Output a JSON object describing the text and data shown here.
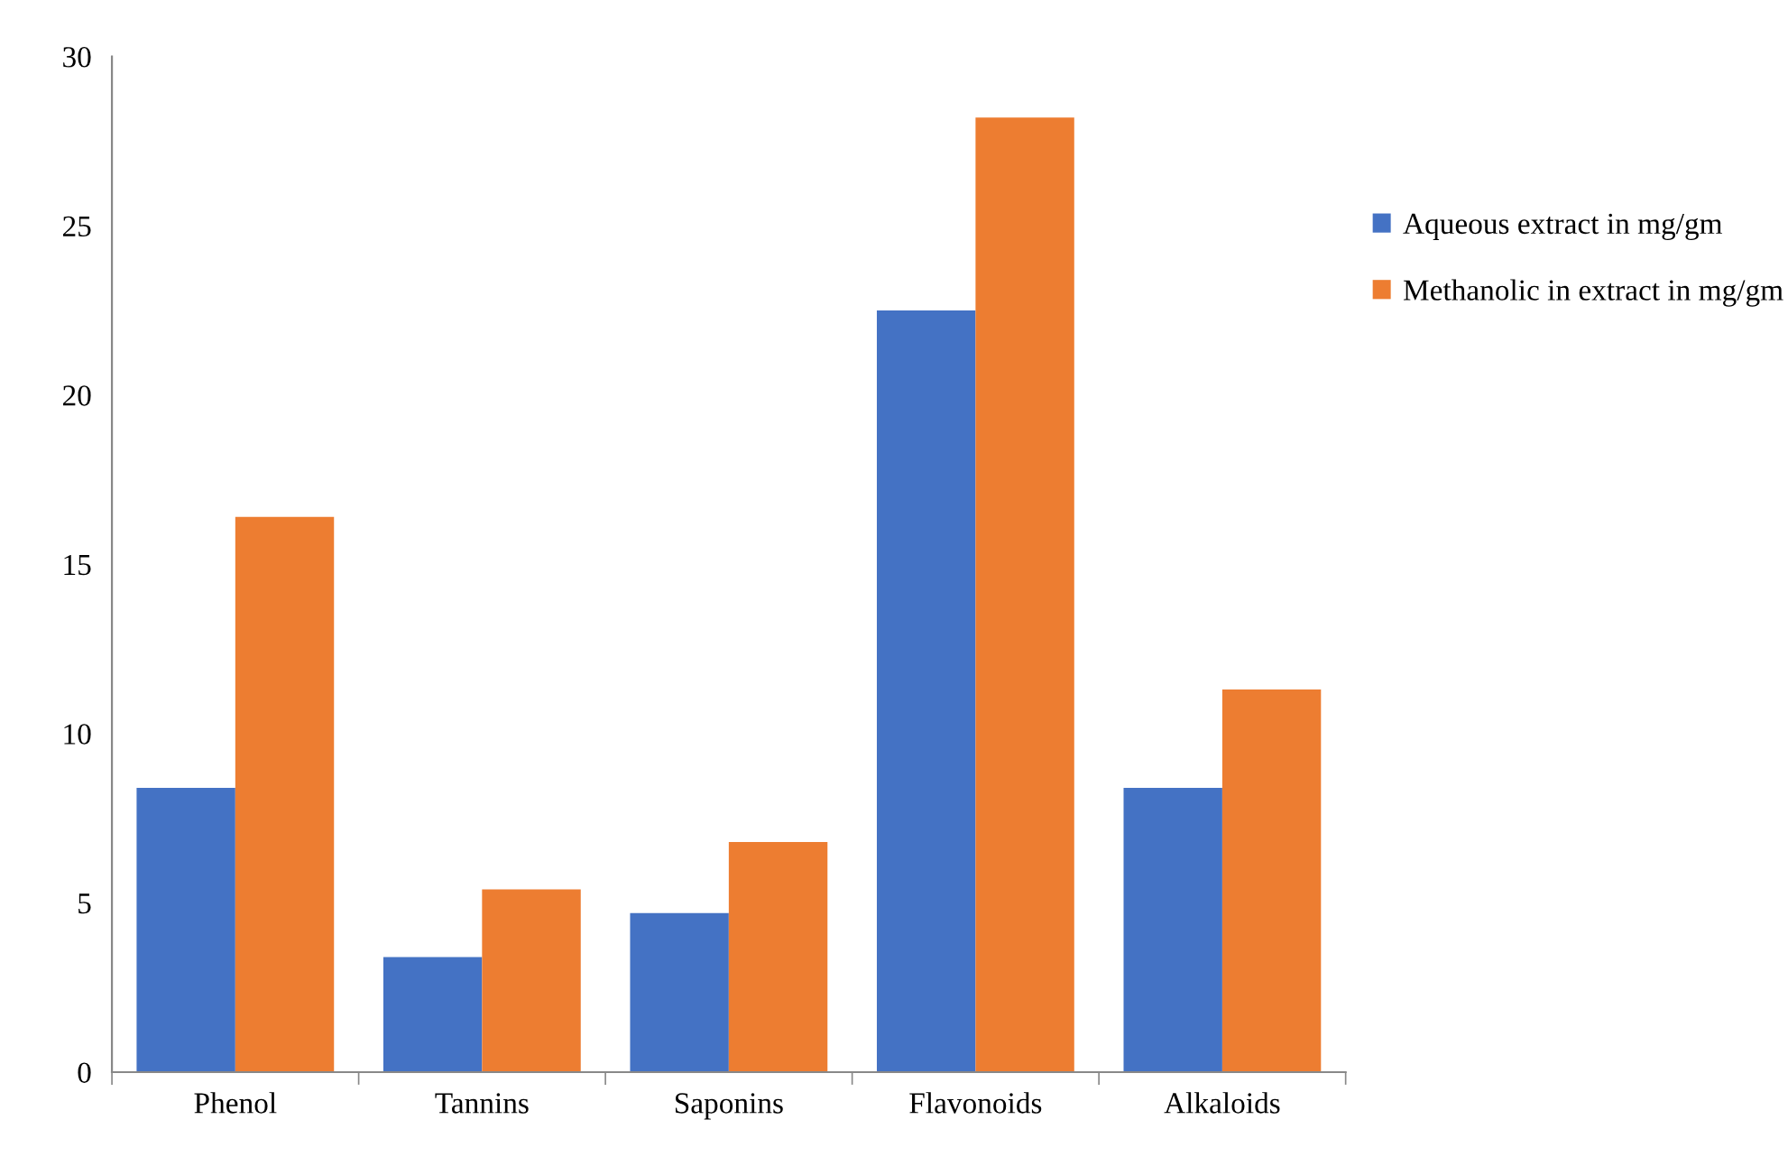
{
  "chart_data": {
    "type": "bar",
    "categories": [
      "Phenol",
      "Tannins",
      "Saponins",
      "Flavonoids",
      "Alkaloids"
    ],
    "series": [
      {
        "name": "Aqueous extract in mg/gm",
        "color": "#4472c4",
        "values": [
          8.4,
          3.4,
          4.7,
          22.5,
          8.4
        ]
      },
      {
        "name": "Methanolic in extract in mg/gm",
        "color": "#ed7d31",
        "values": [
          16.4,
          5.4,
          6.8,
          28.2,
          11.3
        ]
      }
    ],
    "ylim": [
      0,
      30
    ],
    "yticks": [
      0,
      5,
      10,
      15,
      20,
      25,
      30
    ],
    "grid": false,
    "legend": "right"
  }
}
